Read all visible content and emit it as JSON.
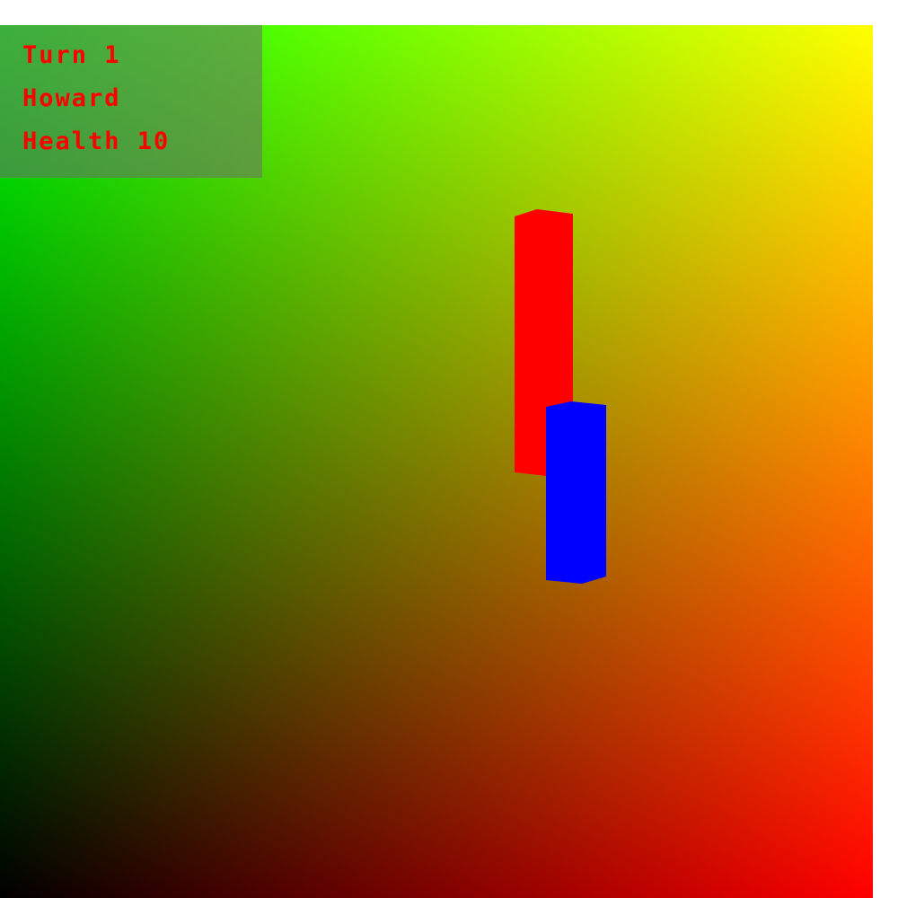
{
  "hud": {
    "turn": "Turn 1",
    "player_name": "Howard",
    "health": "Health 10"
  },
  "scene": {
    "background": {
      "top_left": "#00ff00",
      "top_right": "#ffff00",
      "bottom_left": "#000000",
      "bottom_right": "#ff0000"
    },
    "pieces": [
      {
        "name": "red-piece",
        "color": "#ff0000"
      },
      {
        "name": "blue-piece",
        "color": "#0000ff"
      }
    ]
  }
}
